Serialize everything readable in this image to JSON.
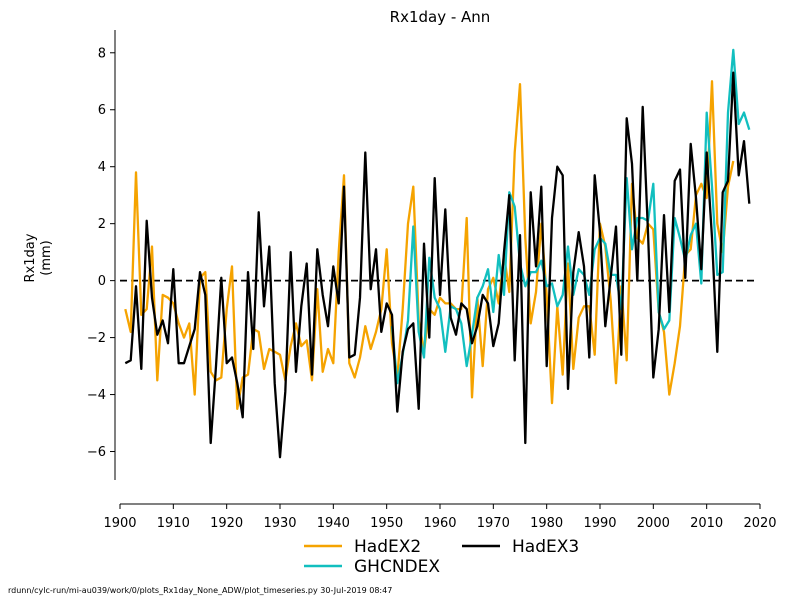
{
  "chart_data": {
    "type": "line",
    "title": "Rx1day - Ann",
    "ylabel_line1": "Rx1day",
    "ylabel_line2": "(mm)",
    "xlabel": "",
    "xlim": [
      1900,
      2020
    ],
    "ylim": [
      -7,
      8.8
    ],
    "xticks": [
      1900,
      1910,
      1920,
      1930,
      1940,
      1950,
      1960,
      1970,
      1980,
      1990,
      2000,
      2010,
      2020
    ],
    "yticks": [
      -6,
      -4,
      -2,
      0,
      2,
      4,
      6,
      8
    ],
    "grid": false,
    "legend_placement": "bottom-center",
    "reference_line": {
      "y": 0,
      "style": "dashed",
      "color": "#000000"
    },
    "series": [
      {
        "name": "HadEX2",
        "color": "#f5a300",
        "x_start": 1901,
        "values": [
          -1.0,
          -1.8,
          3.8,
          -1.2,
          -1.0,
          1.2,
          -3.5,
          -0.5,
          -0.6,
          -0.8,
          -1.5,
          -2.0,
          -1.5,
          -4.0,
          0.1,
          0.3,
          -3.2,
          -3.5,
          -3.4,
          -1.0,
          0.5,
          -4.5,
          -3.4,
          -3.3,
          -1.7,
          -1.8,
          -3.1,
          -2.4,
          -2.5,
          -2.6,
          -3.5,
          -2.3,
          -1.5,
          -2.3,
          -2.1,
          -3.5,
          -0.3,
          -3.2,
          -2.4,
          -2.9,
          1.0,
          3.7,
          -2.9,
          -3.4,
          -2.7,
          -1.6,
          -2.4,
          -1.8,
          -1.0,
          1.1,
          -2.2,
          -3.4,
          -1.0,
          2.0,
          3.3,
          -1.4,
          -2.5,
          -1.0,
          -1.2,
          -0.6,
          -0.8,
          -0.8,
          -1.0,
          -1.0,
          2.2,
          -4.1,
          -0.6,
          -3.0,
          -0.3,
          0.1,
          -0.8,
          0.9,
          -0.4,
          4.5,
          6.9,
          1.5,
          -1.5,
          -0.4,
          2.0,
          -0.5,
          -4.3,
          -0.9,
          -3.3,
          0.6,
          -3.1,
          -1.3,
          -0.9,
          -0.9,
          -2.6,
          2.0,
          1.2,
          -0.7,
          -3.6,
          -0.2,
          -2.8,
          3.4,
          1.5,
          1.3,
          2.0,
          1.8,
          -1.1,
          -1.8,
          -4.0,
          -2.9,
          -1.6,
          0.9,
          1.1,
          3.0,
          3.4,
          2.9,
          7.0,
          2.0,
          1.0,
          3.3,
          4.2
        ]
      },
      {
        "name": "GHCNDEX",
        "color": "#12bfbf",
        "x_start": 1951,
        "values": [
          -1.6,
          -3.6,
          -2.6,
          -1.4,
          1.9,
          -1.8,
          -2.7,
          0.8,
          -0.6,
          -1.0,
          -2.5,
          -0.9,
          -1.0,
          -1.5,
          -3.0,
          -1.9,
          -0.6,
          -0.2,
          0.4,
          -1.1,
          0.9,
          -0.5,
          3.1,
          2.6,
          0.6,
          -0.2,
          0.3,
          0.3,
          0.7,
          -0.2,
          -0.1,
          -0.9,
          -0.5,
          1.2,
          -0.5,
          0.4,
          0.2,
          -0.5,
          1.1,
          1.5,
          1.3,
          0.2,
          0.2,
          -1.0,
          3.6,
          1.1,
          2.2,
          2.2,
          2.1,
          3.4,
          -1.1,
          -1.7,
          -1.4,
          2.2,
          1.5,
          0.7,
          1.6,
          2.0,
          -0.1,
          5.9,
          3.3,
          0.2,
          0.3,
          5.9,
          8.1,
          5.5,
          5.9,
          5.3
        ]
      },
      {
        "name": "HadEX3",
        "color": "#000000",
        "x_start": 1901,
        "values": [
          -2.9,
          -2.8,
          -0.2,
          -3.1,
          2.1,
          -0.6,
          -1.9,
          -1.4,
          -2.2,
          0.4,
          -2.9,
          -2.9,
          -2.3,
          -1.7,
          0.3,
          -0.5,
          -5.7,
          -3.0,
          0.1,
          -2.9,
          -2.7,
          -3.6,
          -4.8,
          0.3,
          -2.4,
          2.4,
          -0.9,
          1.2,
          -3.6,
          -6.2,
          -3.9,
          1.0,
          -3.2,
          -0.9,
          0.6,
          -3.3,
          1.1,
          -0.5,
          -1.6,
          0.5,
          -0.8,
          3.3,
          -2.7,
          -2.6,
          -0.6,
          4.5,
          -0.3,
          1.1,
          -1.8,
          -0.8,
          -1.2,
          -4.6,
          -2.5,
          -1.7,
          -1.5,
          -4.5,
          1.3,
          -2.0,
          3.6,
          -0.5,
          2.5,
          -1.3,
          -1.9,
          -0.8,
          -1.0,
          -2.2,
          -1.6,
          -0.5,
          -0.8,
          -2.3,
          -1.5,
          1.0,
          3.0,
          -2.8,
          1.6,
          -5.7,
          3.1,
          0.5,
          3.3,
          -3.0,
          2.2,
          4.0,
          3.7,
          -3.8,
          0.3,
          1.7,
          0.5,
          -2.7,
          3.7,
          1.7,
          -1.6,
          0.1,
          1.9,
          -2.6,
          5.7,
          4.1,
          0.0,
          6.1,
          1.7,
          -3.4,
          -1.7,
          2.3,
          -1.1,
          3.5,
          3.9,
          0.1,
          4.8,
          2.9,
          0.4,
          4.5,
          1.5,
          -2.5,
          3.1,
          3.5,
          7.3,
          3.7,
          4.9,
          2.7
        ]
      }
    ]
  },
  "footer": "rdunn/cylc-run/mi-au039/work/0/plots_Rx1day_None_ADW/plot_timeseries.py 30-Jul-2019 08:47"
}
